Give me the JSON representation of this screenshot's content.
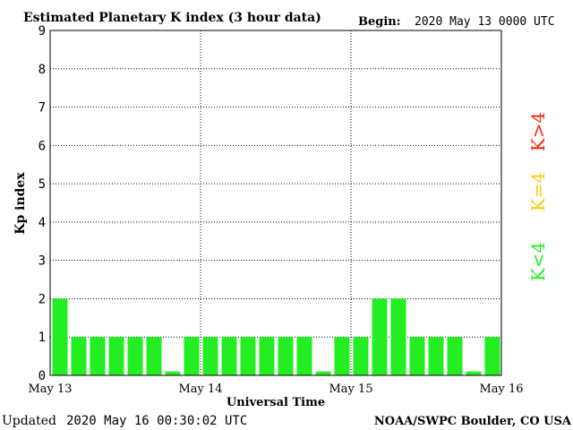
{
  "chart_data": {
    "type": "bar",
    "title": "Estimated Planetary K index (3 hour data)",
    "begin_label": "Begin:",
    "begin_value": "2020 May 13 0000 UTC",
    "xlabel": "Universal Time",
    "ylabel": "Kp index",
    "ylim": [
      0,
      9
    ],
    "yticks": [
      "0",
      "1",
      "2",
      "3",
      "4",
      "5",
      "6",
      "7",
      "8",
      "9"
    ],
    "xticks": [
      "May 13",
      "May 14",
      "May 15",
      "May 16"
    ],
    "grid": true,
    "values": [
      2,
      1,
      1,
      1,
      1,
      1,
      0,
      1,
      1,
      1,
      1,
      1,
      1,
      1,
      0,
      1,
      1,
      2,
      2,
      1,
      1,
      1,
      0,
      1
    ],
    "legend": [
      {
        "label": "K<4",
        "color": "#22ee22"
      },
      {
        "label": "K=4",
        "color": "#ffcc00"
      },
      {
        "label": "K>4",
        "color": "#ff2200"
      }
    ],
    "bar_color": "#22ee22"
  },
  "footer": {
    "updated_label": "Updated",
    "updated_value": "2020 May 16 00:30:02 UTC",
    "source": "NOAA/SWPC Boulder, CO USA"
  }
}
